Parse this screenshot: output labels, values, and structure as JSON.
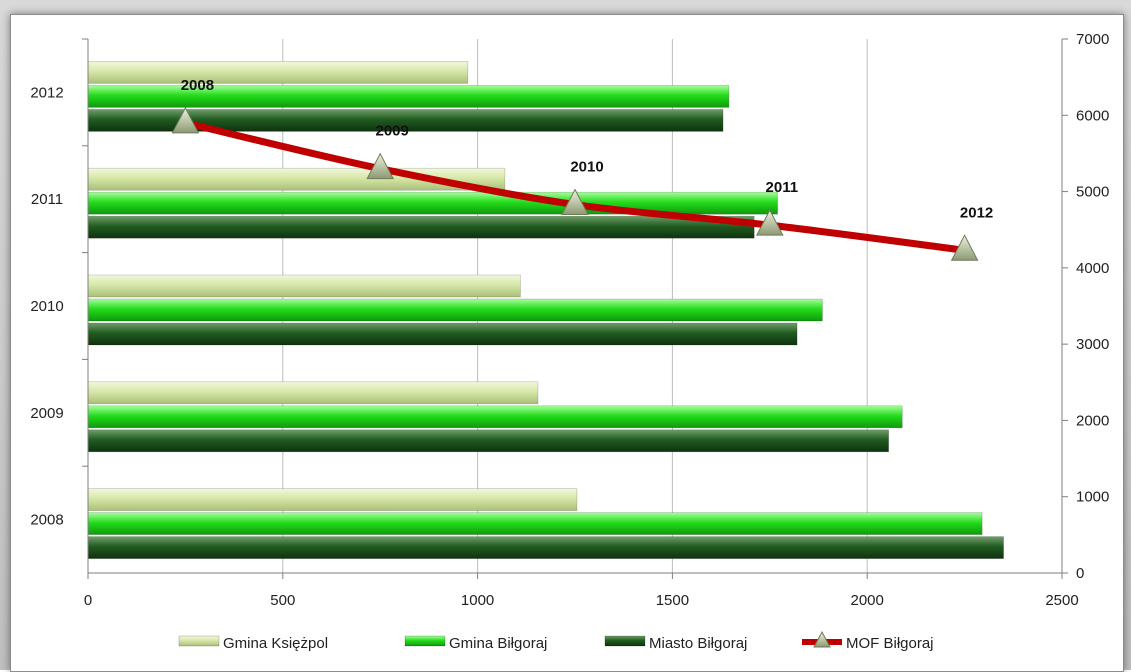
{
  "chart_data": {
    "type": "bar",
    "orientation": "horizontal",
    "categories": [
      "2008",
      "2009",
      "2010",
      "2011",
      "2012"
    ],
    "series": [
      {
        "name": "Gmina Księżpol",
        "axis": "x-bottom",
        "color": "#d4e6a6",
        "values": [
          1255,
          1155,
          1110,
          1070,
          975
        ]
      },
      {
        "name": "Gmina Biłgoraj",
        "axis": "x-bottom",
        "color": "#22d81a",
        "values": [
          2295,
          2090,
          1885,
          1770,
          1645
        ]
      },
      {
        "name": "Miasto Biłgoraj",
        "axis": "x-bottom",
        "color": "#1f5a1f",
        "values": [
          2350,
          2055,
          1820,
          1710,
          1630
        ]
      }
    ],
    "line_series": {
      "name": "MOF Biłgoraj",
      "color": "#c00000",
      "marker": "triangle",
      "axis": "y-right",
      "points": [
        {
          "label": "2008",
          "value": 5900
        },
        {
          "label": "2009",
          "value": 5300
        },
        {
          "label": "2010",
          "value": 4830
        },
        {
          "label": "2011",
          "value": 4560
        },
        {
          "label": "2012",
          "value": 4230
        }
      ]
    },
    "x_axis": {
      "min": 0,
      "max": 2500,
      "ticks": [
        "0",
        "500",
        "1000",
        "1500",
        "2000",
        "2500"
      ]
    },
    "y_right_axis": {
      "min": 0,
      "max": 7000,
      "ticks": [
        "0",
        "1000",
        "2000",
        "3000",
        "4000",
        "5000",
        "6000",
        "7000"
      ]
    },
    "grid": "vertical",
    "legend_position": "bottom"
  }
}
